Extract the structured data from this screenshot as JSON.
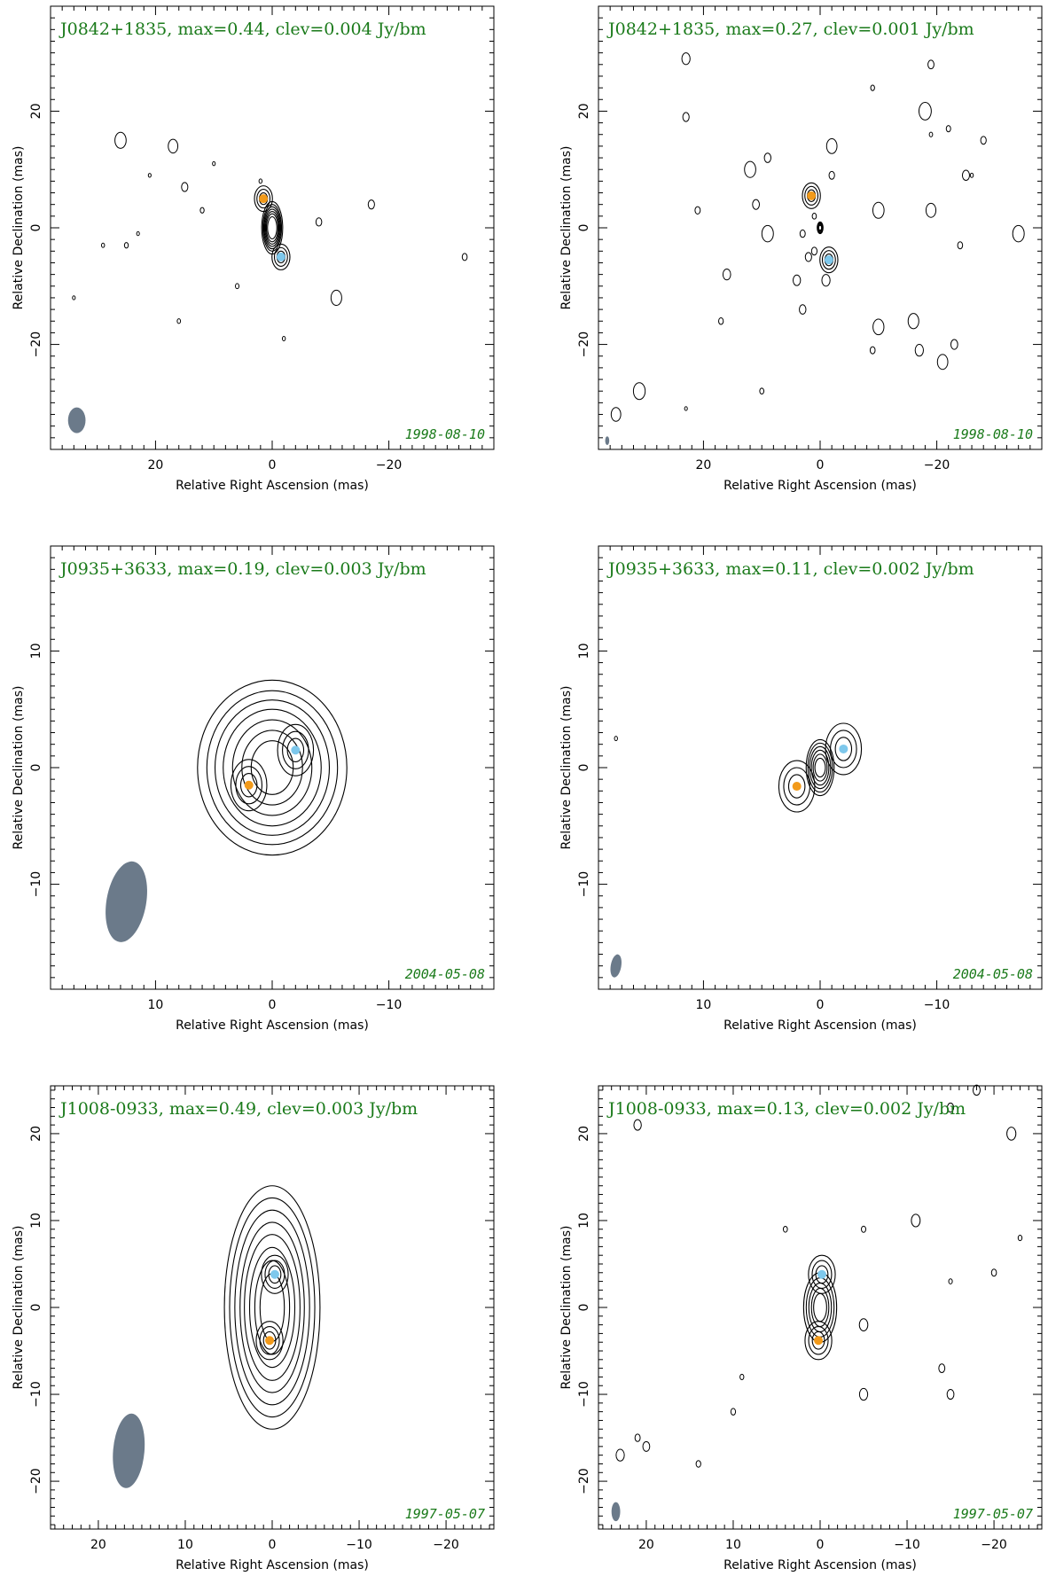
{
  "chart_data": [
    {
      "type": "contour",
      "title": "J0842+1835, max=0.44, clev=0.004 Jy/bm",
      "date": "1998-08-10",
      "xlabel": "Relative Right Ascension (mas)",
      "ylabel": "Relative Declination (mas)",
      "xlim": [
        38,
        -38
      ],
      "ylim": [
        -38,
        38
      ],
      "xticks": [
        20,
        0,
        -20
      ],
      "yticks": [
        -20,
        0,
        20
      ],
      "source_center": [
        0,
        0
      ],
      "components": [
        {
          "x": 1.5,
          "y": 5,
          "color": "#f29a1a"
        },
        {
          "x": -1.5,
          "y": -5,
          "color": "#7ec8ec"
        }
      ],
      "beam": {
        "x": 33.5,
        "y": -33,
        "major": 4.4,
        "minor": 3.0,
        "pa": 0
      },
      "levels": 8,
      "extents": [
        [
          4.5,
          1.8
        ],
        [
          4.0,
          1.6
        ],
        [
          3.6,
          1.45
        ],
        [
          3.2,
          1.3
        ],
        [
          2.8,
          1.15
        ],
        [
          2.4,
          1.0
        ],
        [
          1.9,
          0.8
        ]
      ],
      "noise": [
        [
          -1,
          21,
          9
        ],
        [
          -32,
          26,
          15
        ],
        [
          -26,
          17,
          14
        ],
        [
          -14,
          15,
          7
        ],
        [
          -5,
          12,
          3
        ],
        [
          -2,
          2,
          8
        ],
        [
          -5,
          25,
          -3
        ],
        [
          -30,
          -11,
          -12
        ],
        [
          -2,
          -2,
          -19
        ],
        [
          -1,
          34,
          -12
        ],
        [
          -3,
          16,
          -16
        ],
        [
          4,
          6,
          -10
        ],
        [
          -1,
          10,
          11
        ],
        [
          -12,
          -8,
          1
        ],
        [
          9,
          -33,
          -5
        ],
        [
          -14,
          -17,
          4
        ],
        [
          1,
          23,
          -1
        ],
        [
          2,
          29,
          -3
        ]
      ]
    },
    {
      "type": "contour",
      "title": "J0842+1835, max=0.27, clev=0.001 Jy/bm",
      "date": "1998-08-10",
      "xlabel": "Relative Right Ascension (mas)",
      "ylabel": "Relative Declination (mas)",
      "xlim": [
        38,
        -38
      ],
      "ylim": [
        -38,
        38
      ],
      "xticks": [
        20,
        0,
        -20
      ],
      "yticks": [
        -20,
        0,
        20
      ],
      "source_center": [
        0,
        0
      ],
      "components": [
        {
          "x": 1.5,
          "y": 5.5,
          "color": "#f29a1a"
        },
        {
          "x": -1.5,
          "y": -5.5,
          "color": "#7ec8ec"
        }
      ],
      "beam": {
        "x": 36.5,
        "y": -36.5,
        "major": 1.5,
        "minor": 0.7,
        "pa": 0
      },
      "levels": 8,
      "extents": [
        [
          1.0,
          0.5
        ],
        [
          0.85,
          0.45
        ],
        [
          0.7,
          0.4
        ],
        [
          0.55,
          0.32
        ],
        [
          0.4,
          0.25
        ]
      ],
      "noise": [
        [
          -15,
          9,
          12
        ],
        [
          2,
          -26,
          9
        ],
        [
          29,
          -2,
          14
        ],
        [
          -27,
          -19,
          3
        ],
        [
          -1,
          23,
          -31
        ],
        [
          5,
          -9,
          24
        ],
        [
          -15,
          3,
          -14
        ],
        [
          6,
          10,
          -28
        ],
        [
          -11,
          -2,
          9
        ],
        [
          -11,
          -28,
          15
        ],
        [
          -33,
          9,
          -1
        ],
        [
          -17,
          -25,
          9
        ],
        [
          -21,
          -17,
          -21
        ],
        [
          -33,
          -34,
          -1
        ],
        [
          21,
          23,
          29
        ],
        [
          -32,
          12,
          10
        ],
        [
          7,
          -22,
          17
        ],
        [
          -34,
          31,
          -28
        ],
        [
          29,
          -21,
          -23
        ],
        [
          -32,
          -10,
          3
        ],
        [
          -36,
          -18,
          20
        ],
        [
          -11,
          1,
          -4
        ],
        [
          -14,
          23,
          19
        ],
        [
          -16,
          11,
          4
        ],
        [
          18,
          4,
          -9
        ],
        [
          -30,
          -16,
          -16
        ],
        [
          -21,
          -1,
          -9
        ],
        [
          -13,
          -19,
          28
        ],
        [
          -19,
          16,
          -8
        ],
        [
          -8,
          17,
          -16
        ],
        [
          9,
          -9,
          -21
        ],
        [
          14,
          2,
          -5
        ],
        [
          26,
          35,
          -32
        ],
        [
          -3,
          -19,
          16
        ],
        [
          10,
          3,
          -1
        ],
        [
          -9,
          -24,
          -3
        ],
        [
          -16,
          -23,
          -20
        ],
        [
          -31,
          -10,
          -17
        ],
        [
          10,
          21,
          3
        ],
        [
          -6,
          1,
          2
        ]
      ]
    },
    {
      "type": "contour",
      "title": "J0935+3633, max=0.19, clev=0.003 Jy/bm",
      "date": "2004-05-08",
      "xlabel": "Relative Right Ascension (mas)",
      "ylabel": "Relative Declination (mas)",
      "xlim": [
        19,
        -19
      ],
      "ylim": [
        -19,
        19
      ],
      "xticks": [
        10,
        0,
        -10
      ],
      "yticks": [
        -10,
        0,
        10
      ],
      "source_center": [
        0,
        0
      ],
      "components": [
        {
          "x": 2,
          "y": -1.5,
          "color": "#f29a1a"
        },
        {
          "x": -2,
          "y": 1.5,
          "color": "#7ec8ec"
        }
      ],
      "beam": {
        "x": 12.5,
        "y": -11.5,
        "major": 7.0,
        "minor": 3.4,
        "pa": 10
      },
      "levels": 8,
      "extents": [
        [
          7.5,
          6.4
        ],
        [
          6.6,
          5.6
        ],
        [
          5.8,
          4.9
        ],
        [
          5.0,
          4.2
        ],
        [
          4.1,
          3.4
        ],
        [
          3.2,
          2.6
        ],
        [
          2.3,
          1.8
        ]
      ],
      "noise": []
    },
    {
      "type": "contour",
      "title": "J0935+3633, max=0.11, clev=0.002 Jy/bm",
      "date": "2004-05-08",
      "xlabel": "Relative Right Ascension (mas)",
      "ylabel": "Relative Declination (mas)",
      "xlim": [
        19,
        -19
      ],
      "ylim": [
        -19,
        19
      ],
      "xticks": [
        10,
        0,
        -10
      ],
      "yticks": [
        -10,
        0,
        10
      ],
      "source_center": [
        0,
        0
      ],
      "components": [
        {
          "x": 2,
          "y": -1.6,
          "color": "#f29a1a"
        },
        {
          "x": -2,
          "y": 1.6,
          "color": "#7ec8ec"
        }
      ],
      "beam": {
        "x": 17.5,
        "y": -17,
        "major": 2.0,
        "minor": 0.9,
        "pa": 10
      },
      "levels": 8,
      "extents": [
        [
          2.4,
          1.2
        ],
        [
          2.1,
          1.05
        ],
        [
          1.8,
          0.9
        ],
        [
          1.5,
          0.75
        ],
        [
          1.15,
          0.6
        ],
        [
          0.8,
          0.45
        ]
      ],
      "noise": [
        [
          2,
          17.5,
          2.5
        ]
      ]
    },
    {
      "type": "contour",
      "title": "J1008-0933, max=0.49, clev=0.003 Jy/bm",
      "date": "1997-05-07",
      "xlabel": "Relative Right Ascension (mas)",
      "ylabel": "Relative Declination (mas)",
      "xlim": [
        25.5,
        -25.5
      ],
      "ylim": [
        -25.5,
        25.5
      ],
      "xticks": [
        20,
        10,
        0,
        -10,
        -20
      ],
      "yticks": [
        -20,
        -10,
        0,
        10,
        20
      ],
      "source_center": [
        0,
        0
      ],
      "components": [
        {
          "x": 0.3,
          "y": -3.8,
          "color": "#f29a1a"
        },
        {
          "x": -0.3,
          "y": 3.8,
          "color": "#7ec8ec"
        }
      ],
      "beam": {
        "x": 16.5,
        "y": -16.5,
        "major": 8.6,
        "minor": 3.6,
        "pa": 5
      },
      "levels": 8,
      "extents": [
        [
          14.0,
          5.5
        ],
        [
          12.6,
          4.9
        ],
        [
          11.2,
          4.3
        ],
        [
          9.8,
          3.7
        ],
        [
          8.4,
          3.2
        ],
        [
          6.9,
          2.6
        ],
        [
          5.4,
          2.0
        ],
        [
          3.9,
          1.4
        ]
      ],
      "noise": []
    },
    {
      "type": "contour",
      "title": "J1008-0933, max=0.13, clev=0.002 Jy/bm",
      "date": "1997-05-07",
      "xlabel": "Relative Right Ascension (mas)",
      "ylabel": "Relative Declination (mas)",
      "xlim": [
        25.5,
        -25.5
      ],
      "ylim": [
        -25.5,
        25.5
      ],
      "xticks": [
        20,
        10,
        0,
        -10,
        -20
      ],
      "yticks": [
        -20,
        -10,
        0,
        10,
        20
      ],
      "source_center": [
        0,
        0
      ],
      "components": [
        {
          "x": 0.2,
          "y": -3.8,
          "color": "#f29a1a"
        },
        {
          "x": -0.2,
          "y": 3.8,
          "color": "#7ec8ec"
        }
      ],
      "beam": {
        "x": 23.5,
        "y": -23.5,
        "major": 2.2,
        "minor": 1.0,
        "pa": 0
      },
      "levels": 8,
      "extents": [
        [
          4.0,
          1.9
        ],
        [
          3.4,
          1.6
        ],
        [
          2.8,
          1.3
        ],
        [
          2.2,
          1.0
        ],
        [
          1.6,
          0.75
        ]
      ],
      "noise": [
        [
          -24,
          -22,
          20
        ],
        [
          -7,
          -5,
          9
        ],
        [
          21,
          23,
          -17
        ],
        [
          22,
          -5,
          -2
        ],
        [
          -8,
          14,
          -18
        ],
        [
          -6,
          4,
          9
        ],
        [
          -14,
          -15,
          23
        ],
        [
          -18,
          21,
          21
        ],
        [
          -9,
          -20,
          4
        ],
        [
          -16,
          20,
          -16
        ],
        [
          -23,
          -11,
          10
        ],
        [
          -5,
          9,
          -8
        ],
        [
          13,
          -14,
          -7
        ],
        [
          -4,
          -15,
          3
        ],
        [
          17,
          -18,
          25
        ],
        [
          -16,
          -15,
          -10
        ],
        [
          21,
          -5,
          -10
        ],
        [
          -10,
          21,
          -15
        ],
        [
          -5,
          -23,
          8
        ],
        [
          8,
          10,
          -12
        ]
      ]
    }
  ]
}
